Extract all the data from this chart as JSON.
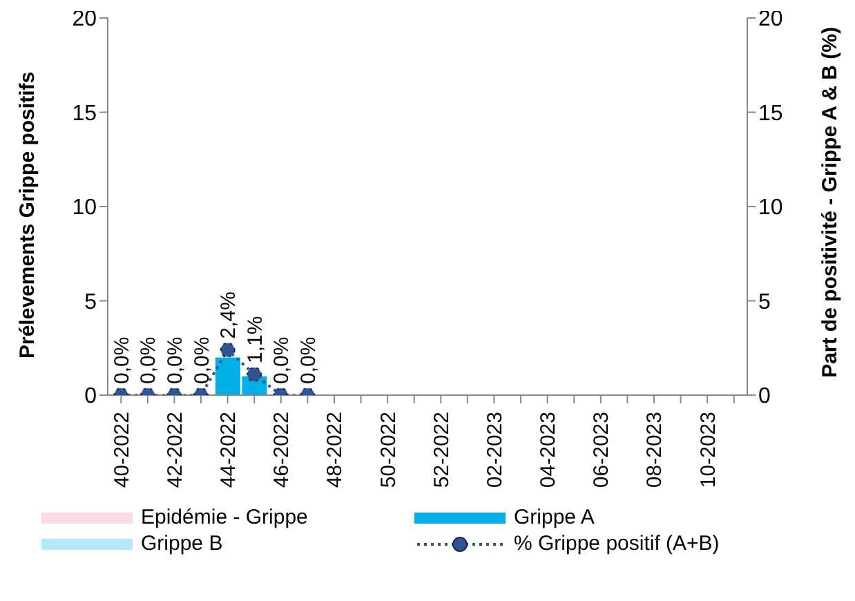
{
  "chart_data": {
    "type": "bar",
    "ylabel": "Prélevements Grippe positifs",
    "y2label": "Part de positivité - Grippe A & B (%)",
    "categories": [
      "40-2022",
      null,
      "42-2022",
      null,
      "44-2022",
      null,
      "46-2022",
      null,
      "48-2022",
      null,
      "50-2022",
      null,
      "52-2022",
      null,
      "02-2023",
      null,
      "04-2023",
      null,
      "06-2023",
      null,
      "08-2023",
      null,
      "10-2023",
      null
    ],
    "series": [
      {
        "name": "Epidémie - Grippe",
        "type": "area",
        "color": "#fadbe4",
        "values": [
          null,
          null,
          null,
          null,
          null,
          null,
          null,
          null,
          null,
          null,
          null,
          null,
          null,
          null,
          null,
          null,
          null,
          null,
          null,
          null,
          null,
          null,
          null,
          null
        ]
      },
      {
        "name": "Grippe A",
        "color": "#00b0e6",
        "values": [
          0,
          0,
          0,
          0,
          2,
          1,
          0,
          0,
          null,
          null,
          null,
          null,
          null,
          null,
          null,
          null,
          null,
          null,
          null,
          null,
          null,
          null,
          null,
          null
        ]
      },
      {
        "name": "Grippe B",
        "color": "#b3e8f8",
        "values": [
          0,
          0,
          0,
          0,
          0,
          0,
          0,
          0,
          null,
          null,
          null,
          null,
          null,
          null,
          null,
          null,
          null,
          null,
          null,
          null,
          null,
          null,
          null,
          null
        ]
      },
      {
        "name": "% Grippe positif (A+B)",
        "type": "line",
        "axis": "y2",
        "color": "#2f5597",
        "marker": "circle",
        "line_style": "dotted",
        "values": [
          0,
          0,
          0,
          0,
          2.4,
          1.1,
          0,
          0,
          null,
          null,
          null,
          null,
          null,
          null,
          null,
          null,
          null,
          null,
          null,
          null,
          null,
          null,
          null,
          null
        ],
        "value_labels": [
          "0,0%",
          "0,0%",
          "0,0%",
          "0,0%",
          "2,4%",
          "1,1%",
          "0,0%",
          "0,0%",
          null,
          null,
          null,
          null,
          null,
          null,
          null,
          null,
          null,
          null,
          null,
          null,
          null,
          null,
          null,
          null
        ]
      }
    ],
    "stacked": true,
    "ylim": [
      0,
      20
    ],
    "yticks": [
      0,
      5,
      10,
      15,
      20
    ],
    "y2lim": [
      0,
      20
    ],
    "y2ticks": [
      0,
      5,
      10,
      15,
      20
    ],
    "grid": false,
    "legend": "bottom"
  }
}
